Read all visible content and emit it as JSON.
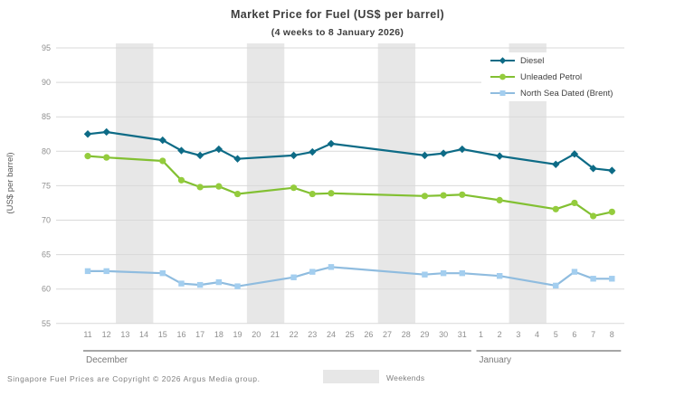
{
  "chart_data": {
    "type": "line",
    "title": "Market Price for Fuel (US$ per barrel)",
    "subtitle": "(4 weeks to 8 January 2026)",
    "ylabel": "(US$ per barrel)",
    "ylim": [
      55,
      95
    ],
    "ytick_step": 5,
    "grid": true,
    "grid_color": "#d9d9d9",
    "weekend_band_color": "#e7e7e7",
    "weekend_legend_label": "Weekends",
    "legend_position": "top-right",
    "x_labels": [
      "11",
      "12",
      "13",
      "14",
      "15",
      "16",
      "17",
      "18",
      "19",
      "20",
      "21",
      "22",
      "23",
      "24",
      "25",
      "26",
      "27",
      "28",
      "29",
      "30",
      "31",
      "1",
      "2",
      "3",
      "4",
      "5",
      "6",
      "7",
      "8"
    ],
    "month_groups": [
      {
        "label": "December",
        "start": 0,
        "end": 20
      },
      {
        "label": "January",
        "start": 21,
        "end": 28
      }
    ],
    "weekend_bands": [
      [
        2,
        3
      ],
      [
        9,
        10
      ],
      [
        16,
        17
      ],
      [
        23,
        24
      ]
    ],
    "series": [
      {
        "name": "Diesel",
        "color": "#0d6b86",
        "marker_color": "#0d6b86",
        "marker": "diamond",
        "values": [
          82.5,
          82.8,
          null,
          null,
          81.6,
          80.1,
          79.4,
          80.3,
          78.9,
          null,
          null,
          79.4,
          79.9,
          81.1,
          null,
          null,
          null,
          null,
          79.4,
          79.7,
          80.3,
          null,
          79.3,
          null,
          null,
          78.1,
          79.6,
          77.5,
          77.2
        ]
      },
      {
        "name": "Unleaded Petrol",
        "color": "#82c032",
        "marker_color": "#94cc3d",
        "marker": "circle",
        "values": [
          79.3,
          79.1,
          null,
          null,
          78.6,
          75.8,
          74.8,
          74.9,
          73.8,
          null,
          null,
          74.7,
          73.8,
          73.9,
          null,
          null,
          null,
          null,
          73.5,
          73.6,
          73.7,
          null,
          72.9,
          null,
          null,
          71.6,
          72.5,
          70.6,
          71.2
        ]
      },
      {
        "name": "North Sea Dated (Brent)",
        "color": "#8fbcdf",
        "marker_color": "#a3ceef",
        "marker": "square",
        "values": [
          62.6,
          62.6,
          null,
          null,
          62.3,
          60.8,
          60.6,
          61.0,
          60.4,
          null,
          null,
          61.7,
          62.5,
          63.2,
          null,
          null,
          null,
          null,
          62.1,
          62.3,
          62.3,
          null,
          61.9,
          null,
          null,
          60.5,
          62.5,
          61.5,
          61.5
        ]
      }
    ]
  },
  "footer": {
    "copyright": "Singapore  Fuel  Prices  are  Copyright  © 2026  Argus  Media  group."
  }
}
